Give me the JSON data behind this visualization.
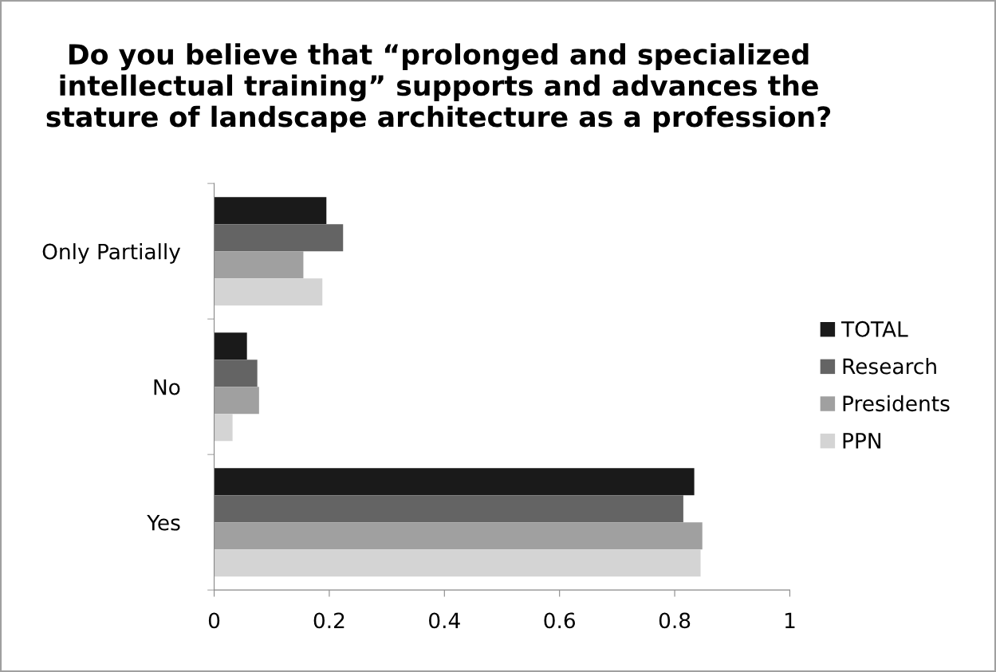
{
  "chart_data": {
    "type": "bar",
    "orientation": "horizontal",
    "title": "Do you believe that “prolonged and specialized intellectual training” supports and advances the stature of landscape architecture as a profession?",
    "categories": [
      "Only Partially",
      "No",
      "Yes"
    ],
    "series": [
      {
        "name": "TOTAL",
        "color": "#1a1a1a",
        "values": [
          0.195,
          0.057,
          0.834
        ]
      },
      {
        "name": "Research",
        "color": "#646464",
        "values": [
          0.224,
          0.075,
          0.815
        ]
      },
      {
        "name": "Presidents",
        "color": "#a0a0a0",
        "values": [
          0.155,
          0.078,
          0.848
        ]
      },
      {
        "name": "PPN",
        "color": "#d4d4d4",
        "values": [
          0.188,
          0.032,
          0.845
        ]
      }
    ],
    "xlim": [
      0,
      1
    ],
    "xticks": [
      0,
      0.2,
      0.4,
      0.6,
      0.8,
      1
    ],
    "grid": false,
    "legend": "right"
  }
}
